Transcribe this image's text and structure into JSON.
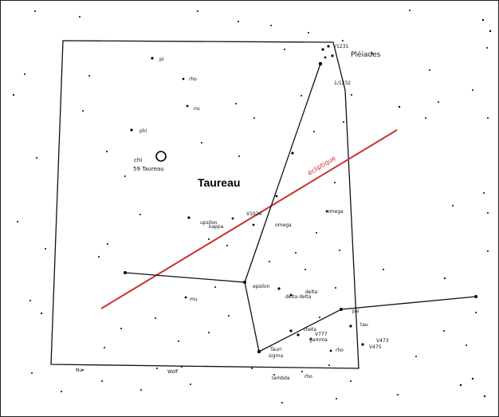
{
  "colors": {
    "background": "#ffffff",
    "lines": "#111111",
    "ecliptic": "#c83232",
    "stars": "#000000"
  },
  "constellation": {
    "name": "Taureau"
  },
  "ecliptic": {
    "label": "écliptique"
  },
  "labels": {
    "pleiades": "Pléiades",
    "v1231": "V1231",
    "v1232": "1/1232",
    "pi": "pi",
    "rho_l": "rho",
    "nu": "nu",
    "phi": "phi",
    "chi": "chi",
    "t59": "59 Taureau",
    "v1024": "V1024",
    "upsilon": "upsilon",
    "kappa": "kappa",
    "omega_l": "omega",
    "omega_r": "omega",
    "epsilon": "epsilon",
    "delta": "delta",
    "delta_b": "delta delta",
    "mu": "mu",
    "theta": "theta",
    "v777": "V777",
    "gamma": "gamma",
    "aldeb": "Tauri",
    "sigma": "sigma",
    "rho": "rho",
    "v473": "V473",
    "v475": "V475",
    "star_r1": "psi",
    "star_r2": "tau",
    "lambda": "lambda",
    "bot1": "Nu",
    "bot2": "Wolf",
    "bot3": "sigma",
    "bot4": "rho"
  }
}
